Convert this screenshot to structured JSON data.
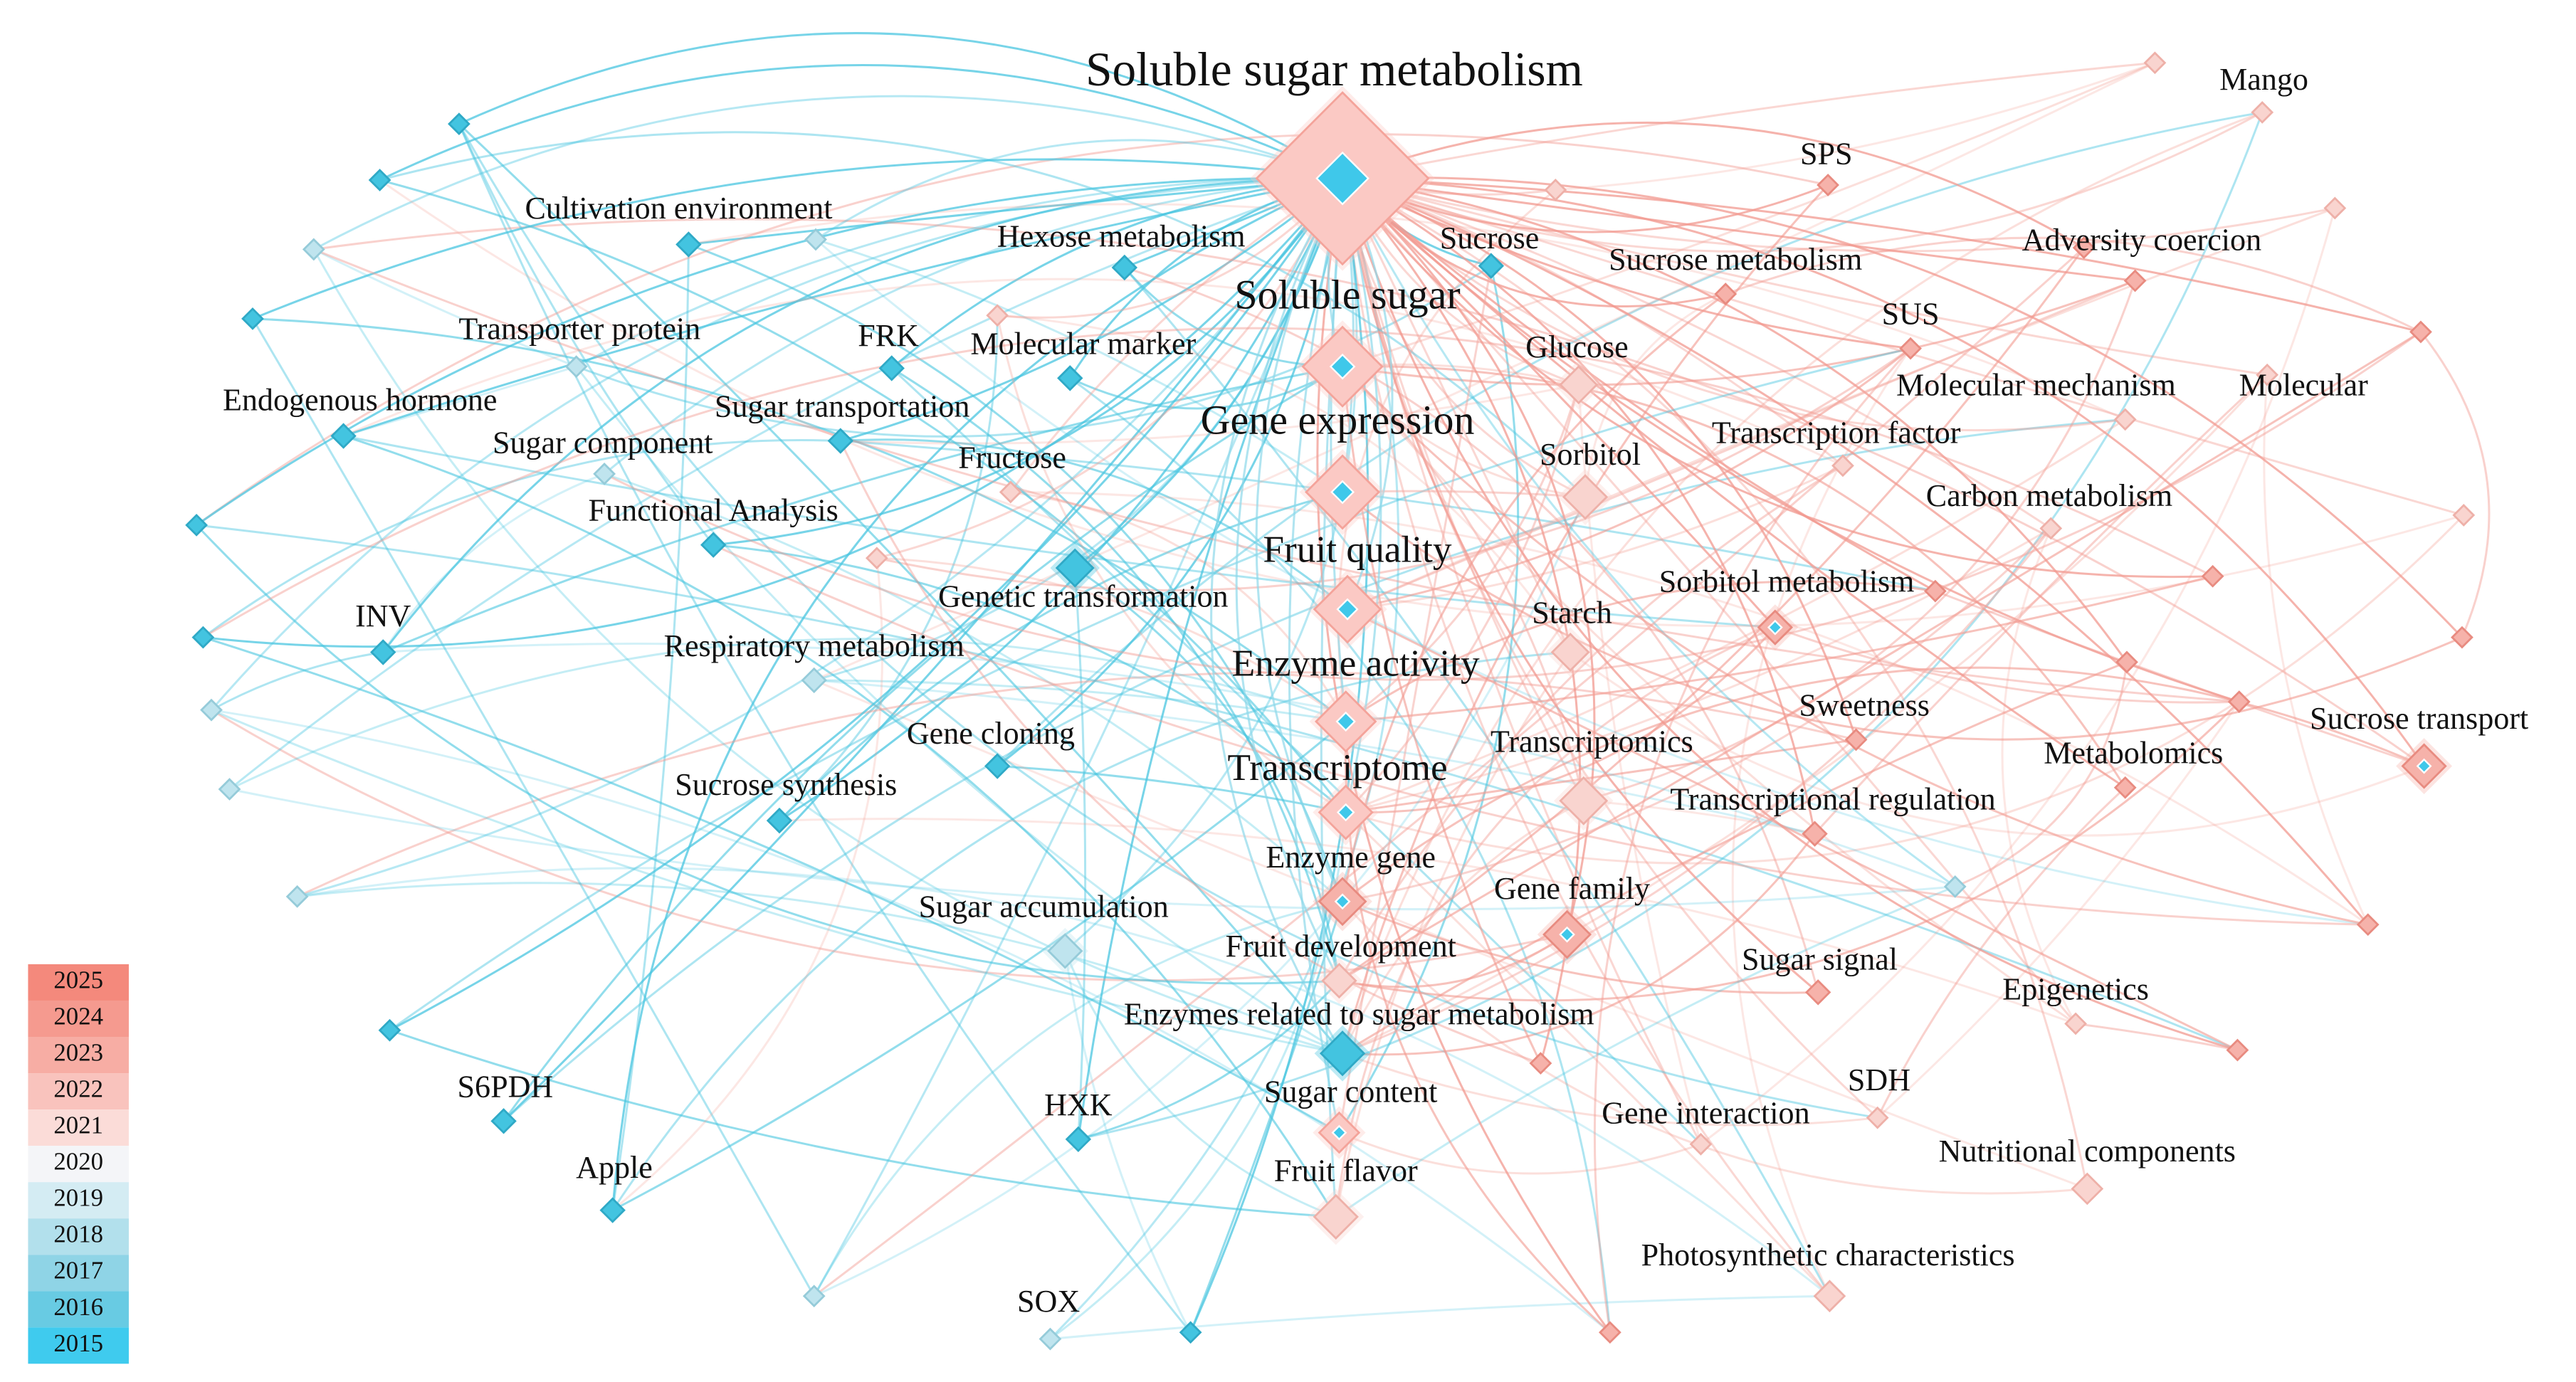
{
  "nodes": [
    {
      "label": "Soluble sugar metabolism"
    },
    {
      "label": "Soluble sugar"
    },
    {
      "label": "Gene expression"
    },
    {
      "label": "Fruit quality"
    },
    {
      "label": "Enzyme activity"
    },
    {
      "label": "Transcriptome"
    },
    {
      "label": "Enzyme gene"
    },
    {
      "label": "Fruit development"
    },
    {
      "label": "Enzymes related to sugar metabolism"
    },
    {
      "label": "Sugar content"
    },
    {
      "label": "Fruit flavor"
    },
    {
      "label": "Cultivation environment"
    },
    {
      "label": "Hexose metabolism"
    },
    {
      "label": "Transporter protein"
    },
    {
      "label": "FRK"
    },
    {
      "label": "Molecular marker"
    },
    {
      "label": "Endogenous hormone"
    },
    {
      "label": "Sugar transportation"
    },
    {
      "label": "Sugar component"
    },
    {
      "label": "Fructose"
    },
    {
      "label": "Functional Analysis"
    },
    {
      "label": "Genetic transformation"
    },
    {
      "label": "INV"
    },
    {
      "label": "Respiratory metabolism"
    },
    {
      "label": "Gene cloning"
    },
    {
      "label": "Sucrose synthesis"
    },
    {
      "label": "Sugar accumulation"
    },
    {
      "label": "S6PDH"
    },
    {
      "label": "HXK"
    },
    {
      "label": "Apple"
    },
    {
      "label": "SOX"
    },
    {
      "label": "Mango"
    },
    {
      "label": "SPS"
    },
    {
      "label": "Sucrose"
    },
    {
      "label": "Sucrose metabolism"
    },
    {
      "label": "Adversity coercion"
    },
    {
      "label": "SUS"
    },
    {
      "label": "Glucose"
    },
    {
      "label": "Molecular mechanism"
    },
    {
      "label": "Molecular"
    },
    {
      "label": "Transcription factor"
    },
    {
      "label": "Sorbitol"
    },
    {
      "label": "Carbon metabolism"
    },
    {
      "label": "Sorbitol metabolism"
    },
    {
      "label": "Starch"
    },
    {
      "label": "Sweetness"
    },
    {
      "label": "Sucrose transport"
    },
    {
      "label": "Metabolomics"
    },
    {
      "label": "Transcriptomics"
    },
    {
      "label": "Transcriptional regulation"
    },
    {
      "label": "Gene family"
    },
    {
      "label": "Sugar signal"
    },
    {
      "label": "Epigenetics"
    },
    {
      "label": "SDH"
    },
    {
      "label": "Gene interaction"
    },
    {
      "label": "Nutritional components"
    },
    {
      "label": "Photosynthetic characteristics"
    }
  ],
  "legend": [
    {
      "year": 2025,
      "color": "#f4897c"
    },
    {
      "year": 2024,
      "color": "#f59a8f"
    },
    {
      "year": 2023,
      "color": "#f7ada4"
    },
    {
      "year": 2022,
      "color": "#f9c3bd"
    },
    {
      "year": 2021,
      "color": "#fbdcd8"
    },
    {
      "year": 2020,
      "color": "#f4f5f8"
    },
    {
      "year": 2019,
      "color": "#d4ecf3"
    },
    {
      "year": 2018,
      "color": "#b2e0ec"
    },
    {
      "year": 2017,
      "color": "#8fd4e6"
    },
    {
      "year": 2016,
      "color": "#68cbe3"
    },
    {
      "year": 2015,
      "color": "#3fcbee"
    }
  ]
}
